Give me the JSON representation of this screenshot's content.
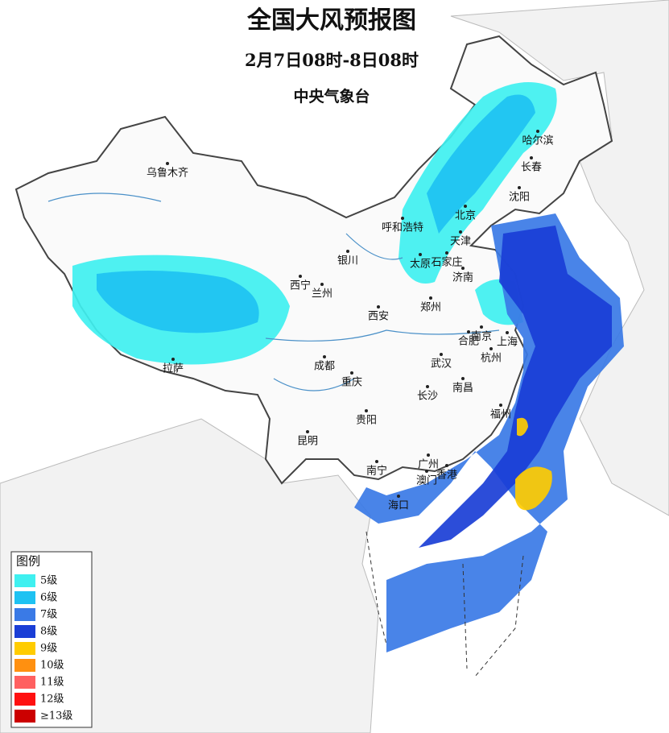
{
  "header": {
    "title": "全国大风预报图",
    "time": "2月7日08时-8日08时",
    "issuer": "中央气象台"
  },
  "cities": [
    "乌鲁木齐",
    "哈尔滨",
    "长春",
    "沈阳",
    "呼和浩特",
    "北京",
    "天津",
    "太原",
    "石家庄",
    "济南",
    "银川",
    "西宁",
    "兰州",
    "郑州",
    "西安",
    "南京",
    "合肥",
    "上海",
    "杭州",
    "武汉",
    "成都",
    "重庆",
    "长沙",
    "南昌",
    "拉萨",
    "贵阳",
    "福州",
    "昆明",
    "南宁",
    "广州",
    "香港",
    "澳门",
    "海口"
  ],
  "legend": {
    "title": "图例",
    "items": [
      {
        "label": "5级",
        "color": "#3ff0f0"
      },
      {
        "label": "6级",
        "color": "#1ec2f2"
      },
      {
        "label": "7级",
        "color": "#3a7ae6"
      },
      {
        "label": "8级",
        "color": "#1a3ed6"
      },
      {
        "label": "9级",
        "color": "#ffcc00"
      },
      {
        "label": "10级",
        "color": "#ff9010"
      },
      {
        "label": "11级",
        "color": "#ff6060"
      },
      {
        "label": "12级",
        "color": "#ff1010"
      },
      {
        "label": "≥13级",
        "color": "#cc0000"
      }
    ]
  }
}
